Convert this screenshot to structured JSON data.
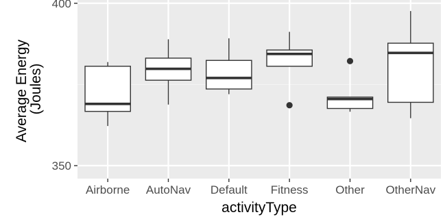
{
  "chart_data": {
    "type": "box",
    "title": "",
    "xlabel": "activityType",
    "ylabel_lines": [
      "Average Energy",
      "(Joules)"
    ],
    "ylim": [
      346,
      401
    ],
    "y_ticks": [
      {
        "value": 350,
        "label": "350"
      },
      {
        "value": 400,
        "label": "400"
      }
    ],
    "y_minor_ticks": [
      375
    ],
    "categories": [
      "Airborne",
      "AutoNav",
      "Default",
      "Fitness",
      "Other",
      "OtherNav"
    ],
    "boxes": [
      {
        "category": "Airborne",
        "min": 362.2,
        "q1": 366.7,
        "median": 369.0,
        "q3": 380.6,
        "max": 381.9,
        "outliers": []
      },
      {
        "category": "AutoNav",
        "min": 368.8,
        "q1": 376.3,
        "median": 379.8,
        "q3": 383.1,
        "max": 388.9,
        "outliers": []
      },
      {
        "category": "Default",
        "min": 372.0,
        "q1": 373.6,
        "median": 377.0,
        "q3": 382.4,
        "max": 389.2,
        "outliers": []
      },
      {
        "category": "Fitness",
        "min": 380.5,
        "q1": 380.6,
        "median": 384.4,
        "q3": 385.6,
        "max": 391.2,
        "outliers": [
          368.6
        ]
      },
      {
        "category": "Other",
        "min": 366.6,
        "q1": 367.6,
        "median": 370.5,
        "q3": 371.1,
        "max": 371.1,
        "outliers": [
          382.2
        ]
      },
      {
        "category": "OtherNav",
        "min": 364.6,
        "q1": 369.5,
        "median": 384.7,
        "q3": 387.7,
        "max": 397.6,
        "outliers": []
      }
    ],
    "grid": true,
    "colors": {
      "panel_background": "#ebebeb",
      "grid_major": "#ffffff",
      "grid_minor": "#f5f5f5",
      "box_fill": "#ffffff",
      "box_stroke": "#333333",
      "tick_text": "#4d4d4d",
      "axis_title": "#000000"
    }
  }
}
